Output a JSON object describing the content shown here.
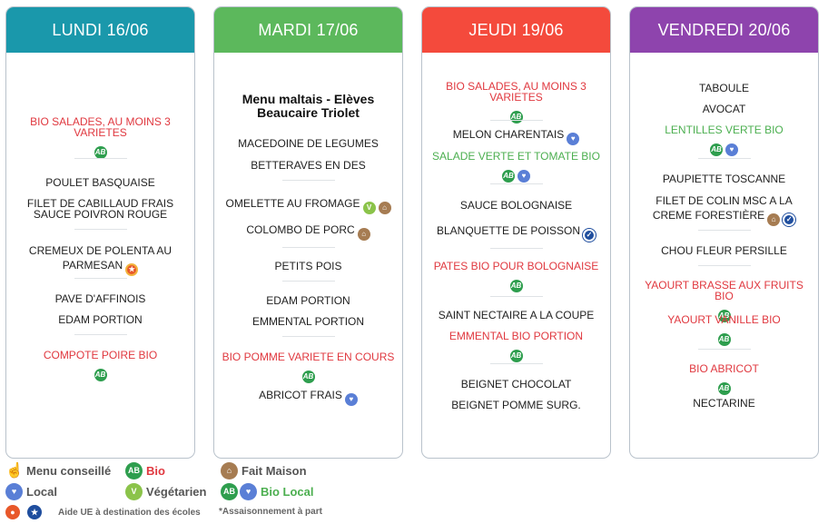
{
  "days": [
    {
      "header": "LUNDI 16/06",
      "color": "#1a98ab",
      "items": [
        {
          "text": "BIO SALADES, AU MOINS 3 VARIETES",
          "tone": "red",
          "icons_below": [
            "bio-icon"
          ]
        },
        {
          "text": "POULET BASQUAISE",
          "tone": "normal"
        },
        {
          "text": "FILET DE CABILLAUD FRAIS SAUCE POIVRON ROUGE",
          "tone": "normal"
        },
        {
          "text": "CREMEUX DE POLENTA AU PARMESAN",
          "tone": "normal",
          "icons_inline": [
            "aop-icon"
          ]
        },
        {
          "text": "PAVE D'AFFINOIS",
          "tone": "normal"
        },
        {
          "text": "EDAM PORTION",
          "tone": "normal"
        },
        {
          "text": "COMPOTE POIRE BIO",
          "tone": "red",
          "icons_below": [
            "bio-icon"
          ]
        }
      ]
    },
    {
      "header": "MARDI 17/06",
      "color": "#5cb85c",
      "title": "Menu maltais - Elèves Beaucaire Triolet",
      "items": [
        {
          "text": "MACEDOINE DE LEGUMES",
          "tone": "normal"
        },
        {
          "text": "BETTERAVES EN DES",
          "tone": "normal"
        },
        {
          "text": "OMELETTE AU FROMAGE",
          "tone": "normal",
          "icons_inline": [
            "vegetarian-icon",
            "fait-maison-icon"
          ]
        },
        {
          "text": "COLOMBO DE PORC",
          "tone": "normal",
          "icons_inline": [
            "fait-maison-icon"
          ]
        },
        {
          "text": "PETITS POIS",
          "tone": "normal"
        },
        {
          "text": "EDAM PORTION",
          "tone": "normal"
        },
        {
          "text": "EMMENTAL PORTION",
          "tone": "normal"
        },
        {
          "text": "BIO POMME VARIETE EN COURS",
          "tone": "red",
          "icons_below": [
            "bio-icon"
          ]
        },
        {
          "text": "ABRICOT FRAIS",
          "tone": "normal",
          "icons_inline": [
            "local-icon"
          ]
        }
      ]
    },
    {
      "header": "JEUDI 19/06",
      "color": "#f44a3c",
      "items": [
        {
          "text": "BIO SALADES, AU MOINS 3 VARIETES",
          "tone": "red",
          "icons_below": [
            "bio-icon"
          ]
        },
        {
          "text": "MELON CHARENTAIS",
          "tone": "normal",
          "icons_inline": [
            "local-icon"
          ]
        },
        {
          "text": "SALADE VERTE ET TOMATE BIO",
          "tone": "green",
          "icons_below": [
            "bio-icon",
            "local-icon"
          ]
        },
        {
          "text": "SAUCE BOLOGNAISE",
          "tone": "normal"
        },
        {
          "text": "BLANQUETTE DE POISSON",
          "tone": "normal",
          "icons_inline": [
            "msc-icon"
          ]
        },
        {
          "text": "PATES BIO POUR BOLOGNAISE",
          "tone": "red",
          "icons_below": [
            "bio-icon"
          ]
        },
        {
          "text": "SAINT NECTAIRE A LA COUPE",
          "tone": "normal"
        },
        {
          "text": "EMMENTAL BIO PORTION",
          "tone": "red",
          "icons_below": [
            "bio-icon"
          ]
        },
        {
          "text": "BEIGNET CHOCOLAT",
          "tone": "normal"
        },
        {
          "text": "BEIGNET POMME SURG.",
          "tone": "normal"
        }
      ]
    },
    {
      "header": "VENDREDI 20/06",
      "color": "#8e44ad",
      "items": [
        {
          "text": "TABOULE",
          "tone": "normal"
        },
        {
          "text": "AVOCAT",
          "tone": "normal"
        },
        {
          "text": "LENTILLES VERTE BIO",
          "tone": "green",
          "icons_below": [
            "bio-icon",
            "local-icon"
          ]
        },
        {
          "text": "PAUPIETTE TOSCANNE",
          "tone": "normal"
        },
        {
          "text": "FILET DE COLIN MSC A LA CREME FORESTIÈRE",
          "tone": "normal",
          "icons_inline": [
            "fait-maison-icon",
            "msc-icon"
          ]
        },
        {
          "text": "CHOU FLEUR PERSILLE",
          "tone": "normal"
        },
        {
          "text": "YAOURT BRASSE AUX FRUITS BIO",
          "tone": "red",
          "icons_below": [
            "bio-icon"
          ]
        },
        {
          "text": "YAOURT VANILLE BIO",
          "tone": "red",
          "icons_below": [
            "bio-icon"
          ]
        },
        {
          "text": "BIO ABRICOT",
          "tone": "red",
          "icons_below": [
            "bio-icon"
          ]
        },
        {
          "text": "NECTARINE",
          "tone": "normal"
        }
      ]
    }
  ],
  "legend": {
    "menu_conseille": "Menu conseillé",
    "bio": "Bio",
    "fait_maison": "Fait Maison",
    "local": "Local",
    "vegetarien": "Végétarien",
    "bio_local": "Bio Local",
    "aide_ue": "Aide UE à destination des écoles",
    "assaisonnement": "*Assaisonnement à part"
  },
  "colors": {
    "bio": "#2e9e4e",
    "local": "#5a7fd6",
    "vegetarien": "#8bc34a",
    "fait_maison": "#a67c52",
    "red_text": "#e0383f",
    "green_text": "#4caf50"
  }
}
